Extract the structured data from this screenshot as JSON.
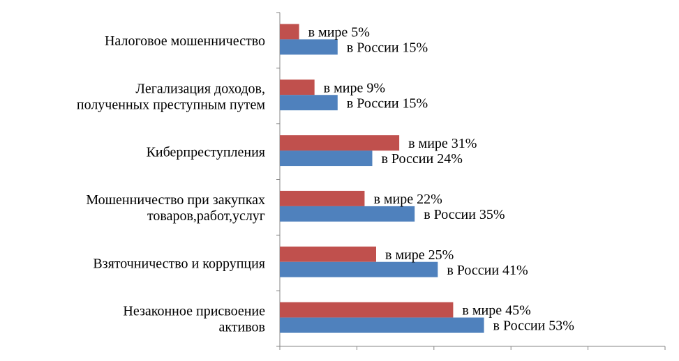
{
  "chart_data": {
    "type": "bar",
    "orientation": "horizontal",
    "categories": [
      [
        "Налоговое мошенничество"
      ],
      [
        "Легализация доходов,",
        "полученных преступным путем"
      ],
      [
        "Киберпреступления"
      ],
      [
        "Мошенничество при закупках",
        "товаров,работ,услуг"
      ],
      [
        "Взяточничество и коррупция"
      ],
      [
        "Незаконное присвоение",
        "активов"
      ]
    ],
    "series": [
      {
        "color": "#C0504D",
        "values": [
          5,
          9,
          31,
          22,
          25,
          45
        ],
        "labels": [
          "в мире 5%",
          "в мире 9%",
          "в мире 31%",
          "в мире 22%",
          "в мире 25%",
          "в мире 45%"
        ]
      },
      {
        "color": "#4F81BD",
        "values": [
          15,
          15,
          24,
          35,
          41,
          53
        ],
        "labels": [
          "в России 15%",
          "в России 15%",
          "в России 24%",
          "в России 35%",
          "в России 41%",
          "в России 53%"
        ]
      }
    ],
    "xlim": [
      0,
      100
    ],
    "x_major_unit": 20,
    "grid": false,
    "tick_labels_shown": false,
    "legend": "none"
  }
}
